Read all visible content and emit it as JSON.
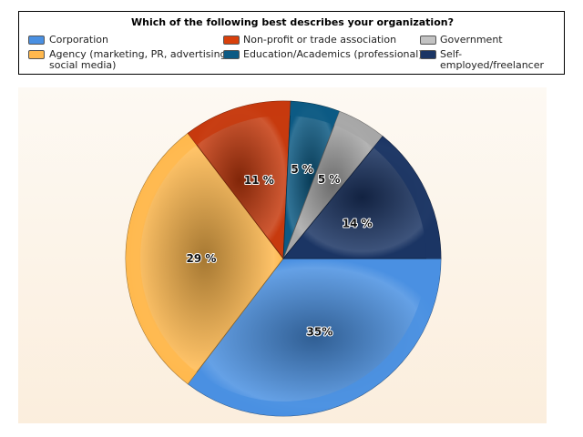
{
  "chart_data": {
    "type": "pie",
    "title": "Which of the following best describes your organization?",
    "slices": [
      {
        "label": "Corporation",
        "value": 35,
        "display": "35%",
        "color": "#4a90e2"
      },
      {
        "label": "Agency (marketing, PR, advertising, social media)",
        "value": 29,
        "display": "29 %",
        "color": "#ffb84d"
      },
      {
        "label": "Non-profit or trade association",
        "value": 11,
        "display": "11 %",
        "color": "#c73a0e"
      },
      {
        "label": "Education/Academics (professional)",
        "value": 5,
        "display": "5 %",
        "color": "#0d5a84"
      },
      {
        "label": "Government",
        "value": 5,
        "display": "5 %",
        "color": "#a7a7a7"
      },
      {
        "label": "Self-employed/freelancer",
        "value": 14,
        "display": "14 %",
        "color": "#1b3564"
      }
    ],
    "legend_position": "top"
  },
  "legend": {
    "title": "Which of the following best describes your organization?",
    "items": [
      {
        "label": "Corporation",
        "color": "#4a90e2"
      },
      {
        "label": "Non-profit or trade association",
        "color": "#d8400c"
      },
      {
        "label": "Government",
        "color": "#c2c2c2"
      },
      {
        "label": "Agency (marketing, PR, advertising,",
        "label2": "social media)",
        "color": "#ffb84d"
      },
      {
        "label": "Education/Academics (professional)",
        "color": "#0d5a84"
      },
      {
        "label": "Self-employed/freelancer",
        "color": "#1b3564"
      }
    ]
  }
}
